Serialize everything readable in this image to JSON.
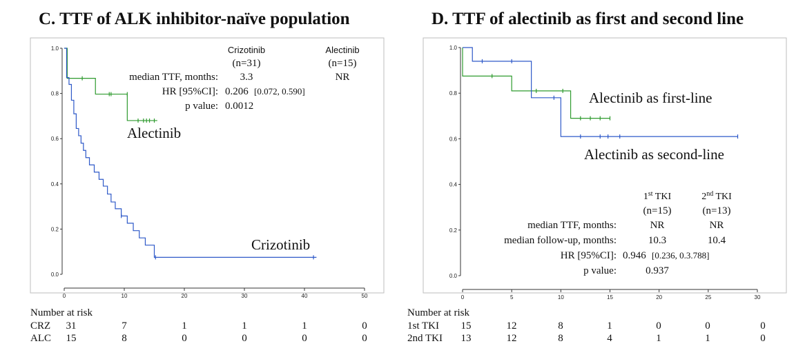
{
  "chart_data": [
    {
      "type": "line",
      "subtype": "kaplan-meier",
      "title": "C. TTF of ALK inhibitor-naïve population",
      "xlabel": "",
      "ylabel": "",
      "xlim": [
        0,
        50
      ],
      "ylim": [
        0,
        1
      ],
      "xticks": [
        "0",
        "10",
        "20",
        "30",
        "40",
        "50"
      ],
      "yticks": [
        "0.0",
        "0.2",
        "0.4",
        "0.6",
        "0.8",
        "1.0"
      ],
      "series": [
        {
          "name": "Alectinib",
          "color": "#2e9a2e",
          "x": [
            0,
            0.5,
            0.5,
            2.5,
            2.5,
            5.2,
            5.2,
            10.5,
            10.5,
            15.5
          ],
          "y": [
            1.0,
            1.0,
            0.867,
            0.867,
            0.867,
            0.867,
            0.797,
            0.797,
            0.68,
            0.68
          ],
          "censor_x": [
            3,
            7.5,
            7.8,
            10.5,
            12.3,
            13.2,
            13.7,
            14.2,
            15
          ],
          "censor_y": [
            0.867,
            0.797,
            0.797,
            0.797,
            0.68,
            0.68,
            0.68,
            0.68,
            0.68
          ]
        },
        {
          "name": "Crizotinib",
          "color": "#2d58c8",
          "x": [
            0,
            0.4,
            0.4,
            0.8,
            0.8,
            1.2,
            1.2,
            1.6,
            1.6,
            2.0,
            2.0,
            2.4,
            2.4,
            2.8,
            2.8,
            3.2,
            3.2,
            3.6,
            3.6,
            4.2,
            4.2,
            5.0,
            5.0,
            5.8,
            5.8,
            6.5,
            6.5,
            7.2,
            7.2,
            7.8,
            7.8,
            8.5,
            8.5,
            9.5,
            9.5,
            10.5,
            10.5,
            11.5,
            11.5,
            12.5,
            12.5,
            13.5,
            13.5,
            15,
            15,
            42
          ],
          "y": [
            1.0,
            1.0,
            0.87,
            0.87,
            0.84,
            0.84,
            0.77,
            0.77,
            0.71,
            0.71,
            0.645,
            0.645,
            0.613,
            0.613,
            0.58,
            0.58,
            0.548,
            0.548,
            0.516,
            0.516,
            0.484,
            0.484,
            0.452,
            0.452,
            0.42,
            0.42,
            0.39,
            0.39,
            0.355,
            0.355,
            0.32,
            0.32,
            0.29,
            0.29,
            0.258,
            0.258,
            0.226,
            0.226,
            0.193,
            0.193,
            0.161,
            0.161,
            0.129,
            0.129,
            0.075,
            0.075
          ],
          "censor_x": [
            9.5,
            15.2,
            41.5
          ],
          "censor_y": [
            0.258,
            0.075,
            0.075
          ]
        }
      ],
      "annotations": {
        "curve_labels": [
          "Alectinib",
          "Crizotinib"
        ],
        "table_header": [
          "Crizotinib",
          "(n=31)",
          "Alectinib",
          "(n=15)"
        ],
        "rows": [
          {
            "label": "median TTF, months:",
            "v1": "3.3",
            "v2": "NR"
          },
          {
            "label": "HR [95%CI]:",
            "v1": "0.206",
            "v1b": "[0.072, 0.590]"
          },
          {
            "label": "p value:",
            "v1": "0.0012"
          }
        ]
      },
      "risk_table": {
        "header": "Number at risk",
        "rows": [
          {
            "label": "CRZ",
            "values": [
              "31",
              "7",
              "1",
              "1",
              "1",
              "0"
            ]
          },
          {
            "label": "ALC",
            "values": [
              "15",
              "8",
              "0",
              "0",
              "0",
              "0"
            ]
          }
        ]
      }
    },
    {
      "type": "line",
      "subtype": "kaplan-meier",
      "title": "D. TTF of alectinib as first and second line",
      "xlabel": "",
      "ylabel": "",
      "xlim": [
        0,
        30
      ],
      "ylim": [
        0,
        1
      ],
      "xticks": [
        "0",
        "5",
        "10",
        "15",
        "20",
        "25",
        "30"
      ],
      "yticks": [
        "0.0",
        "0.2",
        "0.4",
        "0.6",
        "0.8",
        "1.0"
      ],
      "series": [
        {
          "name": "Alectinib as first-line",
          "color": "#2e9a2e",
          "x": [
            0,
            0,
            5,
            5,
            11,
            11,
            15
          ],
          "y": [
            1.0,
            0.875,
            0.875,
            0.81,
            0.81,
            0.69,
            0.69
          ],
          "censor_x": [
            3,
            7.5,
            10.2,
            12,
            13,
            14,
            15
          ],
          "censor_y": [
            0.875,
            0.81,
            0.81,
            0.69,
            0.69,
            0.69,
            0.69
          ]
        },
        {
          "name": "Alectinib as second-line",
          "color": "#2d58c8",
          "x": [
            0,
            1,
            1,
            7,
            7,
            10,
            10,
            28
          ],
          "y": [
            1.0,
            1.0,
            0.94,
            0.94,
            0.78,
            0.78,
            0.61,
            0.61
          ],
          "censor_x": [
            2,
            5,
            9.3,
            12,
            14,
            14.8,
            16,
            28
          ],
          "censor_y": [
            0.94,
            0.94,
            0.78,
            0.61,
            0.61,
            0.61,
            0.61,
            0.61
          ]
        }
      ],
      "annotations": {
        "curve_labels": [
          "Alectinib as first-line",
          "Alectinib as second-line"
        ],
        "col1_header": {
          "base": "1",
          "sup": "st",
          "tail": "TKI",
          "n": "(n=15)"
        },
        "col2_header": {
          "base": "2",
          "sup": "nd",
          "tail": "TKI",
          "n": "(n=13)"
        },
        "rows": [
          {
            "label": "median TTF, months:",
            "v1": "NR",
            "v2": "NR"
          },
          {
            "label": "median follow-up, months:",
            "v1": "10.3",
            "v2": "10.4"
          },
          {
            "label": "HR [95%CI]:",
            "v1": "0.946",
            "v1b": "[0.236, 0.3.788]"
          },
          {
            "label": "p value:",
            "v1": "0.937"
          }
        ]
      },
      "risk_table": {
        "header": "Number at risk",
        "rows": [
          {
            "label": "1st TKI",
            "values": [
              "15",
              "12",
              "8",
              "1",
              "0",
              "0",
              "0"
            ]
          },
          {
            "label": "2nd TKI",
            "values": [
              "13",
              "12",
              "8",
              "4",
              "1",
              "1",
              "0"
            ]
          }
        ]
      }
    }
  ]
}
